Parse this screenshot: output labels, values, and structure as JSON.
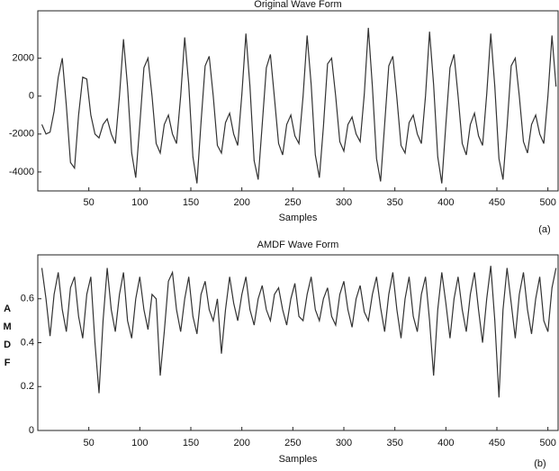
{
  "chart_data": [
    {
      "type": "line",
      "title": "Original Wave Form",
      "xlabel": "Samples",
      "panel_label": "(a)",
      "xlim": [
        0,
        510
      ],
      "xticks": [
        50,
        100,
        150,
        200,
        250,
        300,
        350,
        400,
        450,
        500
      ],
      "ylim": [
        -5000,
        4500
      ],
      "yticks": [
        -4000,
        -2000,
        0,
        2000
      ],
      "series": [
        {
          "color": "#333333",
          "x": [
            4,
            8,
            12,
            16,
            20,
            24,
            28,
            32,
            36,
            40,
            44,
            48,
            52,
            56,
            60,
            64,
            68,
            72,
            76,
            80,
            84,
            88,
            92,
            96,
            100,
            104,
            108,
            112,
            116,
            120,
            124,
            128,
            132,
            136,
            140,
            144,
            148,
            152,
            156,
            160,
            164,
            168,
            172,
            176,
            180,
            184,
            188,
            192,
            196,
            200,
            204,
            208,
            212,
            216,
            220,
            224,
            228,
            232,
            236,
            240,
            244,
            248,
            252,
            256,
            260,
            264,
            268,
            272,
            276,
            280,
            284,
            288,
            292,
            296,
            300,
            304,
            308,
            312,
            316,
            320,
            324,
            328,
            332,
            336,
            340,
            344,
            348,
            352,
            356,
            360,
            364,
            368,
            372,
            376,
            380,
            384,
            388,
            392,
            396,
            400,
            404,
            408,
            412,
            416,
            420,
            424,
            428,
            432,
            436,
            440,
            444,
            448,
            452,
            456,
            460,
            464,
            468,
            472,
            476,
            480,
            484,
            488,
            492,
            496,
            500,
            504,
            508
          ],
          "values": [
            -1500,
            -2000,
            -1900,
            -800,
            1000,
            2000,
            -500,
            -3500,
            -3800,
            -1000,
            1000,
            900,
            -1000,
            -2000,
            -2200,
            -1500,
            -1200,
            -2000,
            -2500,
            0,
            3000,
            500,
            -3000,
            -4300,
            -1500,
            1500,
            2000,
            0,
            -2500,
            -3000,
            -1500,
            -1000,
            -2000,
            -2500,
            0,
            3100,
            600,
            -3200,
            -4600,
            -1400,
            1600,
            2100,
            0,
            -2600,
            -3000,
            -1400,
            -900,
            -2000,
            -2600,
            100,
            3300,
            500,
            -3400,
            -4400,
            -1500,
            1500,
            2200,
            -100,
            -2500,
            -3100,
            -1500,
            -1000,
            -2100,
            -2500,
            0,
            3200,
            600,
            -3100,
            -4300,
            -1600,
            1700,
            2000,
            0,
            -2400,
            -2900,
            -1500,
            -1100,
            -2000,
            -2400,
            100,
            3600,
            500,
            -3300,
            -4500,
            -1500,
            1600,
            2100,
            -100,
            -2600,
            -3000,
            -1400,
            -1000,
            -2000,
            -2500,
            0,
            3400,
            600,
            -3200,
            -4600,
            -1500,
            1500,
            2200,
            0,
            -2500,
            -3100,
            -1500,
            -900,
            -2100,
            -2600,
            100,
            3300,
            500,
            -3300,
            -4400,
            -1600,
            1600,
            2000,
            0,
            -2400,
            -3000,
            -1500,
            -1000,
            -2000,
            -2500,
            0,
            3200,
            500
          ]
        }
      ]
    },
    {
      "type": "line",
      "title": "AMDF Wave Form",
      "xlabel": "Samples",
      "ylabel": "A M D F",
      "panel_label": "(b)",
      "xlim": [
        0,
        510
      ],
      "xticks": [
        50,
        100,
        150,
        200,
        250,
        300,
        350,
        400,
        450,
        500
      ],
      "ylim": [
        0,
        0.8
      ],
      "yticks": [
        0,
        0.2,
        0.4,
        0.6
      ],
      "series": [
        {
          "color": "#333333",
          "x": [
            4,
            8,
            12,
            16,
            20,
            24,
            28,
            32,
            36,
            40,
            44,
            48,
            52,
            56,
            60,
            64,
            68,
            72,
            76,
            80,
            84,
            88,
            92,
            96,
            100,
            104,
            108,
            112,
            116,
            120,
            124,
            128,
            132,
            136,
            140,
            144,
            148,
            152,
            156,
            160,
            164,
            168,
            172,
            176,
            180,
            184,
            188,
            192,
            196,
            200,
            204,
            208,
            212,
            216,
            220,
            224,
            228,
            232,
            236,
            240,
            244,
            248,
            252,
            256,
            260,
            264,
            268,
            272,
            276,
            280,
            284,
            288,
            292,
            296,
            300,
            304,
            308,
            312,
            316,
            320,
            324,
            328,
            332,
            336,
            340,
            344,
            348,
            352,
            356,
            360,
            364,
            368,
            372,
            376,
            380,
            384,
            388,
            392,
            396,
            400,
            404,
            408,
            412,
            416,
            420,
            424,
            428,
            432,
            436,
            440,
            444,
            448,
            452,
            456,
            460,
            464,
            468,
            472,
            476,
            480,
            484,
            488,
            492,
            496,
            500,
            504,
            508
          ],
          "values": [
            0.74,
            0.6,
            0.43,
            0.62,
            0.72,
            0.55,
            0.45,
            0.65,
            0.7,
            0.52,
            0.42,
            0.62,
            0.7,
            0.4,
            0.17,
            0.5,
            0.74,
            0.55,
            0.45,
            0.62,
            0.72,
            0.5,
            0.42,
            0.6,
            0.7,
            0.55,
            0.46,
            0.62,
            0.6,
            0.25,
            0.45,
            0.68,
            0.72,
            0.55,
            0.45,
            0.6,
            0.7,
            0.52,
            0.44,
            0.62,
            0.68,
            0.55,
            0.5,
            0.6,
            0.35,
            0.55,
            0.7,
            0.58,
            0.5,
            0.62,
            0.7,
            0.55,
            0.48,
            0.6,
            0.66,
            0.55,
            0.5,
            0.62,
            0.65,
            0.55,
            0.48,
            0.6,
            0.67,
            0.52,
            0.5,
            0.62,
            0.7,
            0.55,
            0.5,
            0.6,
            0.65,
            0.52,
            0.48,
            0.62,
            0.68,
            0.55,
            0.47,
            0.6,
            0.66,
            0.54,
            0.5,
            0.62,
            0.7,
            0.56,
            0.45,
            0.62,
            0.72,
            0.55,
            0.42,
            0.6,
            0.7,
            0.52,
            0.45,
            0.62,
            0.7,
            0.5,
            0.25,
            0.55,
            0.72,
            0.58,
            0.42,
            0.6,
            0.7,
            0.55,
            0.45,
            0.62,
            0.72,
            0.55,
            0.4,
            0.6,
            0.75,
            0.5,
            0.15,
            0.55,
            0.74,
            0.58,
            0.42,
            0.62,
            0.72,
            0.55,
            0.44,
            0.6,
            0.7,
            0.5,
            0.45,
            0.65,
            0.74
          ]
        }
      ]
    }
  ]
}
